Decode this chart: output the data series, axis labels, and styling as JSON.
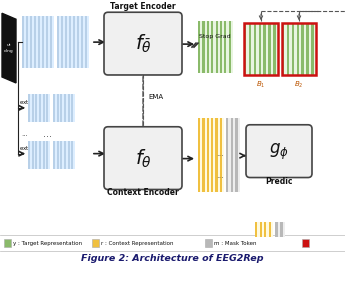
{
  "title": "Figure 2: Architecture of EEG2Rep",
  "bg_color": "#ffffff",
  "blue_stripe_color": "#b8d0e8",
  "blue_bg_color": "#ddeeff",
  "green_stripe_color": "#8aba6a",
  "green_bg_color": "#e8f5e0",
  "yellow_stripe_color": "#f0c040",
  "yellow_bg_color": "#fffae0",
  "gray_stripe_color": "#b8b8b8",
  "gray_bg_color": "#eeeeee",
  "encoder_box_color": "#f0f0f0",
  "encoder_border_color": "#444444",
  "red_border_color": "#cc1111",
  "arrow_color": "#222222",
  "dashed_color": "#555555",
  "text_color": "#111111",
  "title_color": "#1a1a6e",
  "legend_sep_color": "#bbbbbb",
  "target_encoder_label": "Target Encoder",
  "context_encoder_label": "Context Encoder",
  "ema_label": "EMA",
  "stop_grad_label": "Stop Grad",
  "b1_label": "$B_1$",
  "b2_label": "$B_2$",
  "predictor_label": "Predic",
  "fig_title": "Figure 2: Architecture of EEG2Rep",
  "legend_y_color": "#8aba6a",
  "legend_r_color": "#f0c040",
  "legend_m_color": "#b8b8b8",
  "legend_s_color": "#cc1111"
}
